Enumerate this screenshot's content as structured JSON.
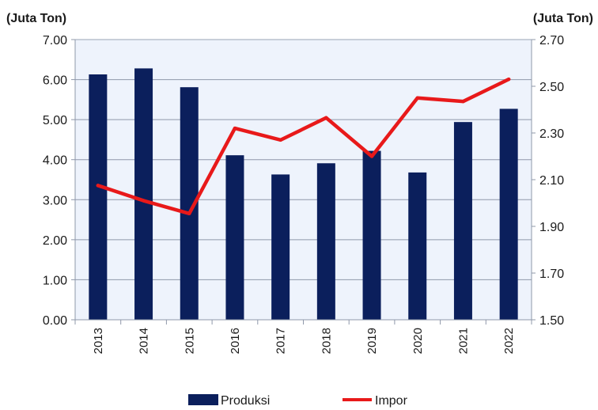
{
  "chart_data": {
    "type": "bar",
    "categories": [
      "2013",
      "2014",
      "2015",
      "2016",
      "2017",
      "2018",
      "2019",
      "2020",
      "2021",
      "2022"
    ],
    "series": [
      {
        "name": "Produksi",
        "type": "bar",
        "axis": "left",
        "color": "#0b1f5c",
        "values": [
          6.13,
          6.28,
          5.81,
          4.11,
          3.63,
          3.91,
          4.22,
          3.68,
          4.94,
          5.27
        ]
      },
      {
        "name": "Impor",
        "type": "line",
        "axis": "right",
        "color": "#e8191a",
        "values": [
          2.075,
          2.01,
          1.955,
          2.32,
          2.27,
          2.365,
          2.2,
          2.45,
          2.435,
          2.53
        ]
      }
    ],
    "left_axis": {
      "label": "(Juta Ton)",
      "ylim": [
        0,
        7
      ],
      "ticks": [
        "0.00",
        "1.00",
        "2.00",
        "3.00",
        "4.00",
        "5.00",
        "6.00",
        "7.00"
      ]
    },
    "right_axis": {
      "label": "(Juta Ton)",
      "ylim": [
        1.5,
        2.7
      ],
      "ticks": [
        "1.50",
        "1.70",
        "1.90",
        "2.10",
        "2.30",
        "2.50",
        "2.70"
      ]
    },
    "plot_background": "#eef3fc",
    "grid": "horizontal",
    "legend_position": "bottom"
  }
}
